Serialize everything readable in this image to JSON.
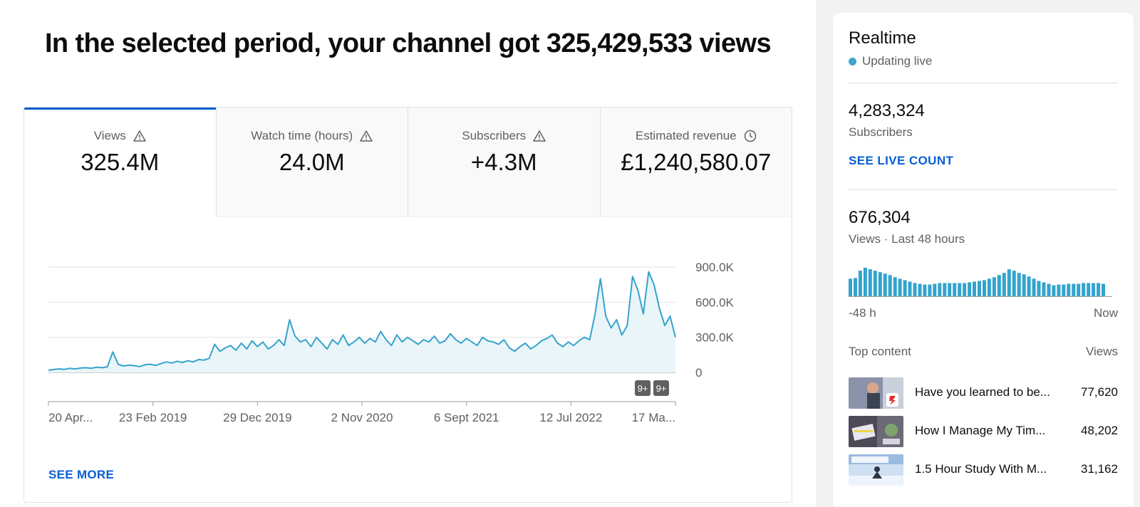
{
  "headline": "In the selected period, your channel got 325,429,533 views",
  "tabs": [
    {
      "label": "Views",
      "value": "325.4M",
      "icon": "warning-icon"
    },
    {
      "label": "Watch time (hours)",
      "value": "24.0M",
      "icon": "warning-icon"
    },
    {
      "label": "Subscribers",
      "value": "+4.3M",
      "icon": "warning-icon"
    },
    {
      "label": "Estimated revenue",
      "value": "£1,240,580.07",
      "icon": "clock-icon"
    }
  ],
  "see_more": "SEE MORE",
  "chart_data": {
    "type": "area",
    "title": "",
    "y_ticks": [
      "900.0K",
      "600.0K",
      "300.0K",
      "0"
    ],
    "ylim": [
      0,
      900000
    ],
    "x_tick_labels": [
      "20 Apr...",
      "23 Feb 2019",
      "29 Dec 2019",
      "2 Nov 2020",
      "6 Sept 2021",
      "12 Jul 2022",
      "17 Ma..."
    ],
    "annotation_badges": [
      "9+",
      "9+"
    ],
    "colors": {
      "line": "#34a3cd",
      "fill": "#eaf5f9"
    },
    "series": [
      {
        "values": [
          18000,
          25000,
          30000,
          26000,
          35000,
          30000,
          38000,
          40000,
          35000,
          45000,
          40000,
          48000,
          175000,
          70000,
          55000,
          62000,
          58000,
          50000,
          65000,
          70000,
          60000,
          75000,
          90000,
          80000,
          95000,
          85000,
          100000,
          90000,
          110000,
          105000,
          120000,
          240000,
          180000,
          210000,
          230000,
          190000,
          250000,
          200000,
          270000,
          220000,
          260000,
          200000,
          230000,
          280000,
          230000,
          450000,
          310000,
          260000,
          280000,
          220000,
          300000,
          250000,
          200000,
          280000,
          240000,
          320000,
          230000,
          260000,
          300000,
          250000,
          290000,
          260000,
          350000,
          280000,
          230000,
          320000,
          260000,
          300000,
          270000,
          240000,
          280000,
          260000,
          310000,
          250000,
          270000,
          330000,
          280000,
          250000,
          290000,
          260000,
          230000,
          300000,
          270000,
          260000,
          240000,
          280000,
          210000,
          180000,
          220000,
          250000,
          200000,
          230000,
          270000,
          290000,
          320000,
          250000,
          220000,
          260000,
          230000,
          270000,
          300000,
          280000,
          500000,
          800000,
          480000,
          380000,
          450000,
          320000,
          400000,
          820000,
          700000,
          500000,
          860000,
          750000,
          550000,
          400000,
          480000,
          300000
        ]
      }
    ]
  },
  "realtime": {
    "title": "Realtime",
    "live_text": "Updating live",
    "subscribers_count": "4,283,324",
    "subscribers_label": "Subscribers",
    "live_count_link": "SEE LIVE COUNT",
    "views_count": "676,304",
    "views_label": "Views · Last 48 hours",
    "axis_left": "-48 h",
    "axis_right": "Now",
    "bar_color": "#34a3cd",
    "bars": [
      24,
      25,
      35,
      39,
      37,
      35,
      33,
      31,
      29,
      26,
      24,
      22,
      20,
      18,
      17,
      16,
      16,
      17,
      18,
      18,
      18,
      18,
      18,
      18,
      19,
      20,
      21,
      22,
      24,
      26,
      29,
      32,
      37,
      35,
      32,
      30,
      27,
      24,
      21,
      19,
      17,
      15,
      16,
      16,
      17,
      17,
      17,
      18,
      18,
      18,
      18,
      17
    ],
    "top_content_label": "Top content",
    "top_content_views_label": "Views",
    "top_content": [
      {
        "title": "Have you learned to be...",
        "views": "77,620",
        "thumb": "man-thumbnail"
      },
      {
        "title": "How I Manage My Tim...",
        "views": "48,202",
        "thumb": "desk-thumbnail"
      },
      {
        "title": "1.5 Hour Study With M...",
        "views": "31,162",
        "thumb": "study-thumbnail"
      }
    ]
  }
}
